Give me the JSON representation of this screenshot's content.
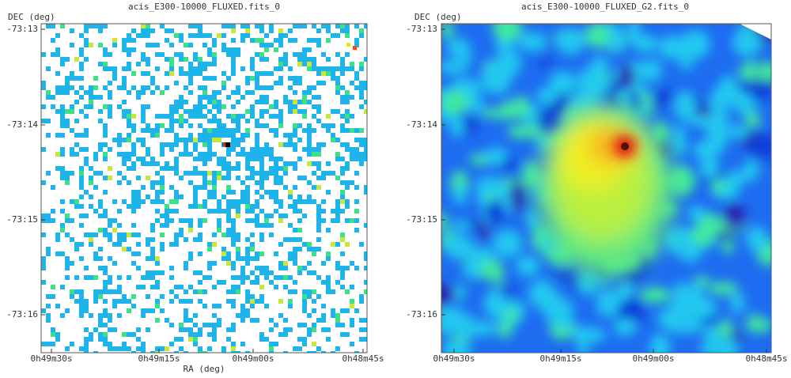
{
  "panels": [
    {
      "title": "acis_E300-10000_FLUXED.fits_0",
      "y_label": "DEC (deg)",
      "x_label": "RA (deg)",
      "y_ticks": [
        "-73:13",
        "-73:14",
        "-73:15",
        "-73:16"
      ],
      "x_ticks": [
        "0h49m30s",
        "0h49m15s",
        "0h49m00s",
        "0h48m45s"
      ]
    },
    {
      "title": "acis_E300-10000_FLUXED_G2.fits_0",
      "y_label": "DEC (deg)",
      "y_ticks": [
        "-73:13",
        "-73:14",
        "-73:15",
        "-73:16"
      ],
      "x_ticks": [
        "0h49m30s",
        "0h49m15s",
        "0h49m00s",
        "0h48m45s"
      ]
    }
  ]
}
